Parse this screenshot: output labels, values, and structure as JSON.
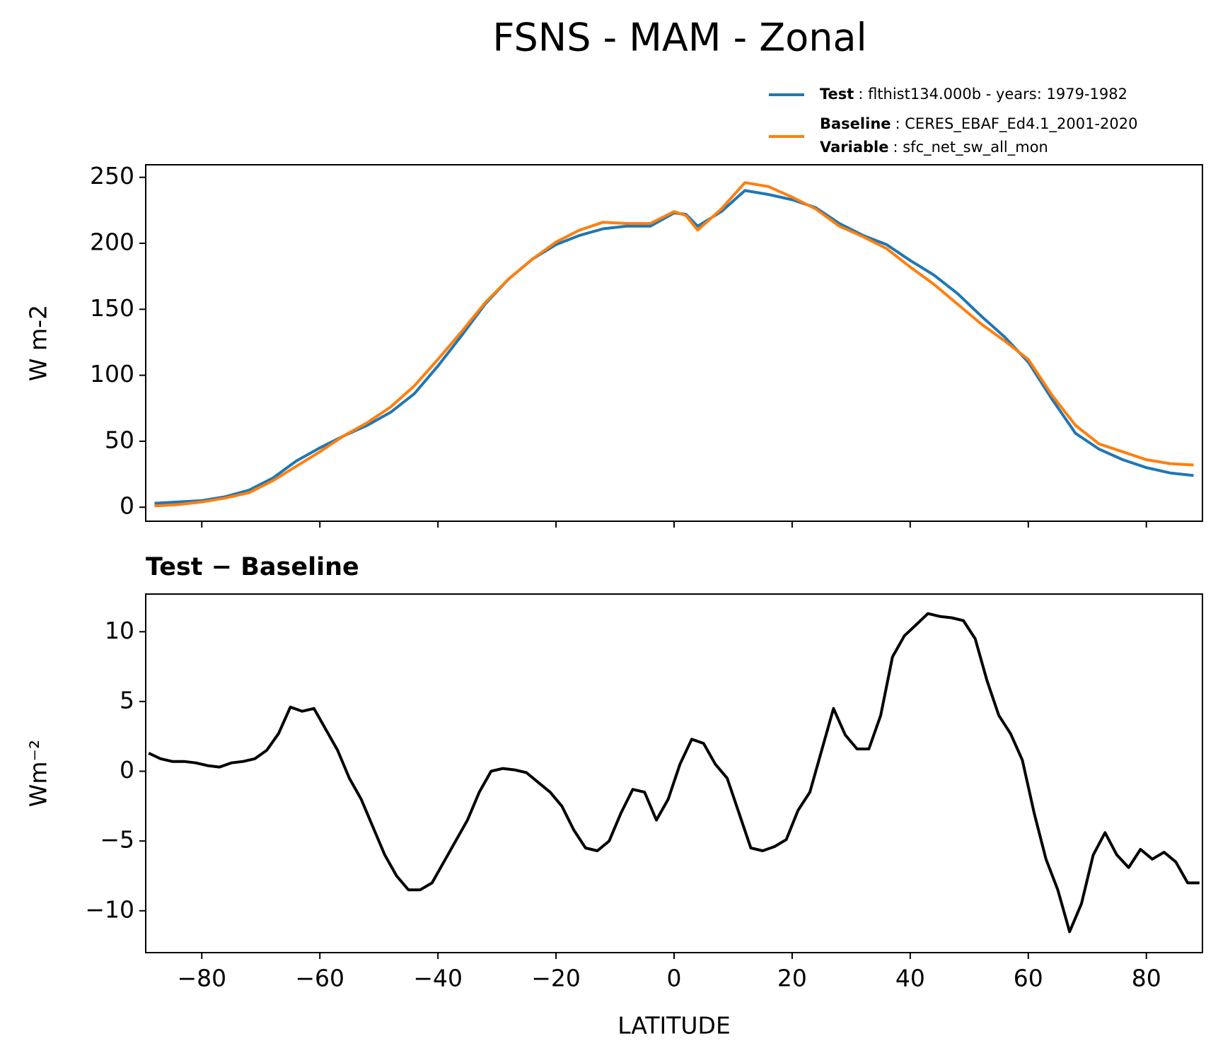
{
  "title": "FSNS - MAM - Zonal",
  "chart_data": [
    {
      "type": "line",
      "ylabel": "W m-2",
      "legend": "upper right",
      "legend_extra": {
        "name": "Variable",
        "label": ": sfc_net_sw_all_mon"
      },
      "x": [
        -88,
        -84,
        -80,
        -76,
        -72,
        -68,
        -64,
        -60,
        -56,
        -52,
        -48,
        -44,
        -40,
        -36,
        -32,
        -28,
        -24,
        -20,
        -16,
        -12,
        -8,
        -4,
        0,
        2,
        4,
        8,
        12,
        16,
        20,
        24,
        28,
        32,
        36,
        40,
        44,
        48,
        52,
        56,
        60,
        64,
        68,
        72,
        76,
        80,
        84,
        88
      ],
      "series": [
        {
          "name": "Test",
          "label": ": flthist134.000b - years: 1979-1982",
          "color": "#1f77b4",
          "values": [
            3,
            4,
            5,
            8,
            13,
            22,
            35,
            45,
            54,
            62,
            72,
            86,
            107,
            130,
            154,
            173,
            188,
            199,
            206,
            211,
            213,
            213,
            223,
            222,
            213,
            224,
            240,
            237,
            233,
            227,
            215,
            206,
            199,
            187,
            176,
            162,
            145,
            129,
            110,
            82,
            56,
            44,
            36,
            30,
            26,
            24
          ]
        },
        {
          "name": "Baseline",
          "label": ": CERES_EBAF_Ed4.1_2001-2020",
          "color": "#ff7f0e",
          "values": [
            1,
            2,
            4,
            7,
            11,
            20,
            31,
            42,
            54,
            64,
            76,
            92,
            112,
            133,
            155,
            173,
            188,
            201,
            210,
            216,
            215,
            215,
            224,
            221,
            210,
            226,
            246,
            243,
            235,
            226,
            213,
            205,
            196,
            182,
            169,
            154,
            139,
            126,
            112,
            85,
            62,
            48,
            42,
            36,
            33,
            32
          ]
        }
      ],
      "xlim": [
        -89.5,
        89.5
      ],
      "xticks": [
        -80,
        -60,
        -40,
        -20,
        0,
        20,
        40,
        60,
        80
      ],
      "ylim": [
        -10.6,
        259.5
      ],
      "yticks": [
        0,
        50,
        100,
        150,
        200,
        250
      ]
    },
    {
      "type": "line",
      "title": "Test − Baseline",
      "ylabel": "Wm⁻²",
      "xlabel": "LATITUDE",
      "x": [
        -89,
        -87,
        -85,
        -83,
        -81,
        -79,
        -77,
        -75,
        -73,
        -71,
        -69,
        -67,
        -65,
        -63,
        -61,
        -59,
        -57,
        -55,
        -53,
        -51,
        -49,
        -47,
        -45,
        -43,
        -41,
        -39,
        -37,
        -35,
        -33,
        -31,
        -29,
        -27,
        -25,
        -23,
        -21,
        -19,
        -17,
        -15,
        -13,
        -11,
        -9,
        -7,
        -5,
        -3,
        -1,
        1,
        3,
        5,
        7,
        9,
        11,
        13,
        15,
        17,
        19,
        21,
        23,
        25,
        27,
        29,
        31,
        33,
        35,
        37,
        39,
        41,
        43,
        45,
        47,
        49,
        51,
        53,
        55,
        57,
        59,
        61,
        63,
        65,
        67,
        69,
        71,
        73,
        75,
        77,
        79,
        81,
        83,
        85,
        87,
        89
      ],
      "series": [
        {
          "color": "#000000",
          "values": [
            1.3,
            0.9,
            0.7,
            0.7,
            0.6,
            0.4,
            0.3,
            0.6,
            0.7,
            0.9,
            1.5,
            2.7,
            4.6,
            4.3,
            4.5,
            3.0,
            1.5,
            -0.5,
            -2.0,
            -4.0,
            -6.0,
            -7.5,
            -8.5,
            -8.5,
            -8.0,
            -6.5,
            -5.0,
            -3.5,
            -1.5,
            0.0,
            0.2,
            0.1,
            -0.1,
            -0.8,
            -1.5,
            -2.5,
            -4.2,
            -5.5,
            -5.7,
            -5.0,
            -3.0,
            -1.3,
            -1.5,
            -3.5,
            -2.0,
            0.5,
            2.3,
            2.0,
            0.5,
            -0.5,
            -3.0,
            -5.5,
            -5.7,
            -5.4,
            -4.9,
            -2.8,
            -1.5,
            1.5,
            4.5,
            2.6,
            1.6,
            1.6,
            4.0,
            8.2,
            9.7,
            10.5,
            11.3,
            11.1,
            11.0,
            10.8,
            9.5,
            6.5,
            4.0,
            2.7,
            0.8,
            -3.0,
            -6.3,
            -8.5,
            -11.5,
            -9.5,
            -6.0,
            -4.4,
            -6.0,
            -6.9,
            -5.6,
            -6.3,
            -5.8,
            -6.5,
            -8.0,
            -8.0
          ]
        }
      ],
      "xlim": [
        -89.5,
        89.5
      ],
      "xticks": [
        {
          "value": -80,
          "label": "−80"
        },
        {
          "value": -60,
          "label": "−60"
        },
        {
          "value": -40,
          "label": "−40"
        },
        {
          "value": -20,
          "label": "−20"
        },
        0,
        20,
        40,
        60,
        80
      ],
      "ylim": [
        -13,
        12.7
      ],
      "yticks": [
        {
          "value": -10,
          "label": "−10"
        },
        {
          "value": -5,
          "label": "−5"
        },
        0,
        5,
        10
      ]
    }
  ]
}
